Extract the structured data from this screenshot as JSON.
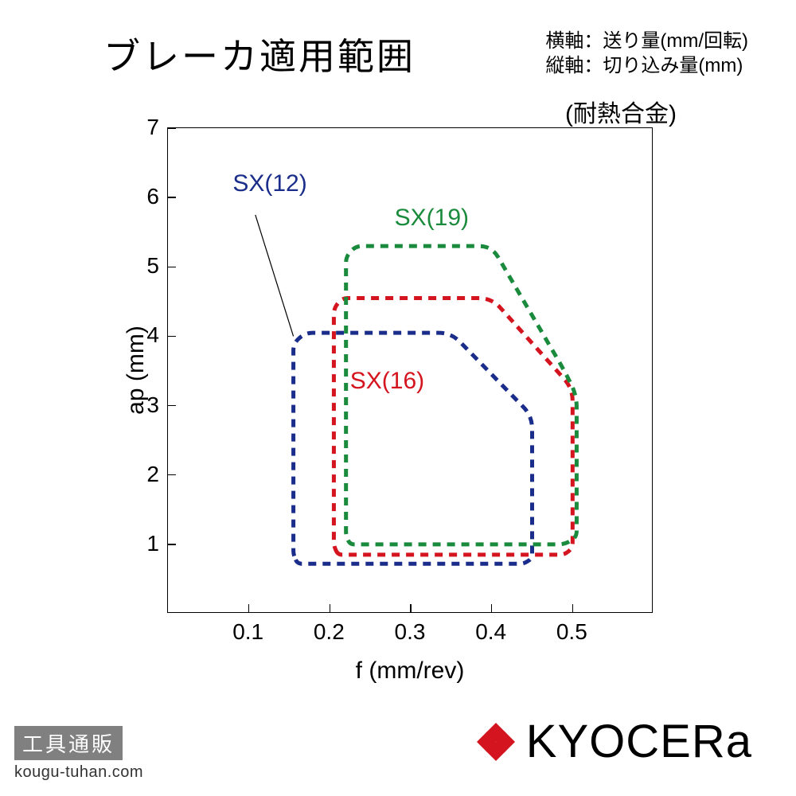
{
  "title": "ブレーカ適用範囲",
  "axis_description": {
    "x": "横軸：送り量(mm/回転)",
    "y": "縦軸：切り込み量(mm)"
  },
  "subtitle": "(耐熱合金)",
  "chart": {
    "type": "region-outline",
    "xlabel": "f (mm/rev)",
    "ylabel": "ap (mm)",
    "xlim": [
      0,
      0.6
    ],
    "ylim": [
      0,
      7
    ],
    "xticks": [
      0.1,
      0.2,
      0.3,
      0.4,
      0.5
    ],
    "yticks": [
      1,
      2,
      3,
      4,
      5,
      6,
      7
    ],
    "tick_fontsize": 28,
    "label_fontsize": 30,
    "background_color": "#ffffff",
    "border_color": "#000000",
    "series": [
      {
        "name": "SX(12)",
        "color": "#1a2d8a",
        "dash": "10,8",
        "stroke_width": 5,
        "label_pos": {
          "x": 0.08,
          "y": 6.2
        },
        "label_color": "#1a2d8a",
        "leader_line": {
          "from": {
            "x": 0.108,
            "y": 5.75
          },
          "to": {
            "x": 0.155,
            "y": 4.0
          }
        },
        "path": [
          {
            "x": 0.16,
            "y": 0.72
          },
          {
            "x": 0.44,
            "y": 0.72
          },
          {
            "x": 0.45,
            "y": 0.8
          },
          {
            "x": 0.45,
            "y": 2.85
          },
          {
            "x": 0.35,
            "y": 4.05
          },
          {
            "x": 0.17,
            "y": 4.05
          },
          {
            "x": 0.155,
            "y": 3.9
          },
          {
            "x": 0.155,
            "y": 0.85
          }
        ]
      },
      {
        "name": "SX(16)",
        "color": "#d4141e",
        "dash": "10,8",
        "stroke_width": 5,
        "label_pos": {
          "x": 0.225,
          "y": 3.35
        },
        "label_color": "#d4141e",
        "path": [
          {
            "x": 0.21,
            "y": 0.85
          },
          {
            "x": 0.49,
            "y": 0.85
          },
          {
            "x": 0.5,
            "y": 0.95
          },
          {
            "x": 0.5,
            "y": 3.25
          },
          {
            "x": 0.4,
            "y": 4.55
          },
          {
            "x": 0.215,
            "y": 4.55
          },
          {
            "x": 0.205,
            "y": 4.4
          },
          {
            "x": 0.205,
            "y": 0.98
          }
        ]
      },
      {
        "name": "SX(19)",
        "color": "#1a8a3d",
        "dash": "10,8",
        "stroke_width": 5,
        "label_pos": {
          "x": 0.28,
          "y": 5.7
        },
        "label_color": "#1a8a3d",
        "path": [
          {
            "x": 0.225,
            "y": 1.0
          },
          {
            "x": 0.49,
            "y": 1.0
          },
          {
            "x": 0.505,
            "y": 1.1
          },
          {
            "x": 0.505,
            "y": 3.15
          },
          {
            "x": 0.49,
            "y": 3.5
          },
          {
            "x": 0.4,
            "y": 5.3
          },
          {
            "x": 0.232,
            "y": 5.3
          },
          {
            "x": 0.22,
            "y": 5.15
          },
          {
            "x": 0.22,
            "y": 1.12
          }
        ]
      }
    ]
  },
  "footer": {
    "badge": "工具通販",
    "url": "kougu-tuhan.com"
  },
  "logo": {
    "text": "KYOCERa",
    "mark_color": "#d4141e"
  }
}
